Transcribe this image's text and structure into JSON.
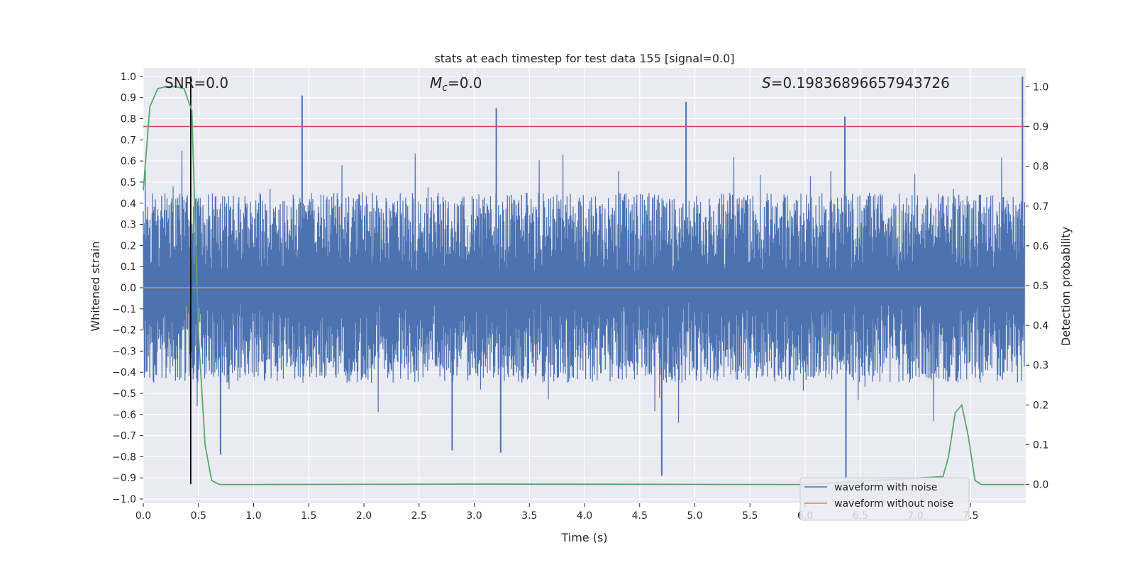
{
  "chart_data": {
    "type": "line",
    "title": "stats at each timestep for test data 155 [signal=0.0]",
    "xlabel": "Time (s)",
    "ylabel": "Whitened strain",
    "y2label": "Detection probability",
    "xlim": [
      0.0,
      8.0
    ],
    "ylim": [
      -1.02,
      1.04
    ],
    "y2lim": [
      -0.047,
      1.047
    ],
    "x_ticks": [
      0.0,
      0.5,
      1.0,
      1.5,
      2.0,
      2.5,
      3.0,
      3.5,
      4.0,
      4.5,
      5.0,
      5.5,
      6.0,
      6.5,
      7.0,
      7.5
    ],
    "x_tick_labels": [
      "0.0",
      "0.5",
      "1.0",
      "1.5",
      "2.0",
      "2.5",
      "3.0",
      "3.5",
      "4.0",
      "4.5",
      "5.0",
      "5.5",
      "6.0",
      "6.5",
      "7.0",
      "7.5"
    ],
    "y_ticks": [
      1.0,
      0.9,
      0.8,
      0.7,
      0.6,
      0.5,
      0.4,
      0.3,
      0.2,
      0.1,
      0.0,
      -0.1,
      -0.2,
      -0.3,
      -0.4,
      -0.5,
      -0.6,
      -0.7,
      -0.8,
      -0.9,
      -1.0
    ],
    "y_tick_labels": [
      "1.0",
      "0.9",
      "0.8",
      "0.7",
      "0.6",
      "0.5",
      "0.4",
      "0.3",
      "0.2",
      "0.1",
      "0.0",
      "−0.1",
      "−0.2",
      "−0.3",
      "−0.4",
      "−0.5",
      "−0.6",
      "−0.7",
      "−0.8",
      "−0.9",
      "−1.0"
    ],
    "y2_ticks": [
      1.0,
      0.9,
      0.8,
      0.7,
      0.6,
      0.5,
      0.4,
      0.3,
      0.2,
      0.1,
      0.0
    ],
    "y2_tick_labels": [
      "1.0",
      "0.9",
      "0.8",
      "0.7",
      "0.6",
      "0.5",
      "0.4",
      "0.3",
      "0.2",
      "0.1",
      "0.0"
    ],
    "annotations": {
      "snr": "SNR=0.0",
      "mc_symbol": "M",
      "mc_sub": "c",
      "mc_value": "=0.0",
      "s_symbol": "S",
      "s_value": "=0.19836896657943726"
    },
    "series": [
      {
        "name": "waveform with noise",
        "color": "#4c72b0",
        "kind": "noise",
        "x_range": [
          0.0,
          7.99
        ],
        "envelope_abs": 0.45,
        "spikes": [
          {
            "x": 1.44,
            "y": 0.91
          },
          {
            "x": 3.2,
            "y": 0.85
          },
          {
            "x": 4.92,
            "y": 0.88
          },
          {
            "x": 6.36,
            "y": 0.81
          },
          {
            "x": 7.97,
            "y": 1.0
          },
          {
            "x": 4.7,
            "y": -0.89
          },
          {
            "x": 6.37,
            "y": -0.9
          },
          {
            "x": 0.7,
            "y": -0.79
          },
          {
            "x": 3.24,
            "y": -0.78
          },
          {
            "x": 2.8,
            "y": -0.77
          }
        ]
      },
      {
        "name": "waveform without noise",
        "color": "#dd8452",
        "x": [
          0.0,
          7.99
        ],
        "y": [
          0.0,
          0.0
        ]
      },
      {
        "name": "detection probability",
        "axis": "right",
        "color": "#55a868",
        "x": [
          0.0,
          0.06,
          0.13,
          0.2,
          0.3,
          0.37,
          0.44,
          0.5,
          0.56,
          0.62,
          0.69,
          1.0,
          3.0,
          6.0,
          7.25,
          7.3,
          7.36,
          7.42,
          7.48,
          7.54,
          7.6,
          7.99
        ],
        "y": [
          0.74,
          0.95,
          0.995,
          1.0,
          1.0,
          0.995,
          0.94,
          0.38,
          0.1,
          0.01,
          0.0,
          0.0,
          0.001,
          0.0,
          0.02,
          0.07,
          0.18,
          0.2,
          0.12,
          0.01,
          0.0,
          0.0
        ]
      }
    ],
    "threshold": {
      "axis": "right",
      "value": 0.9,
      "color": "#c44e52"
    },
    "event_marker": {
      "x": 0.43,
      "y_top": 1.0,
      "y_bottom": -0.93,
      "color": "#000000"
    },
    "legend": {
      "placement": "lower-right",
      "entries": [
        {
          "label": "waveform with noise",
          "color": "#4c72b0"
        },
        {
          "label": "waveform without noise",
          "color": "#dd8452"
        }
      ]
    }
  }
}
